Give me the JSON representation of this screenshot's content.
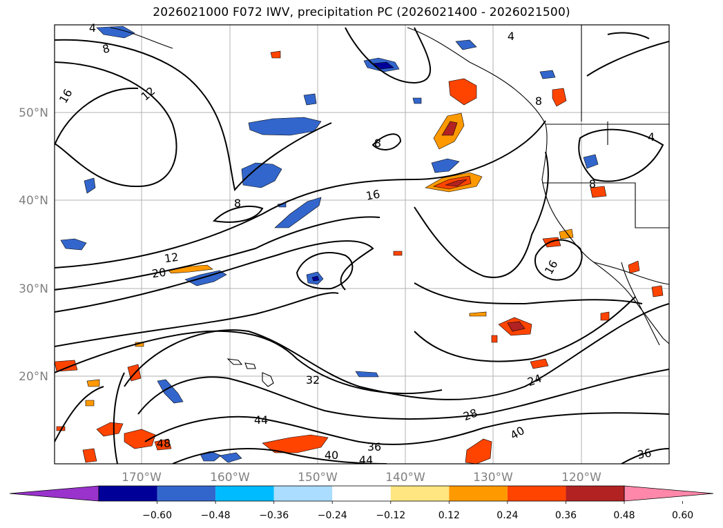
{
  "title": "2026021000 F072 IWV, precipitation PC (2026021400 - 2026021500)",
  "map": {
    "lat_ticks": [
      "50°N",
      "40°N",
      "30°N",
      "20°N"
    ],
    "lon_ticks": [
      "170°W",
      "160°W",
      "150°W",
      "140°W",
      "130°W",
      "120°W"
    ],
    "grid": true,
    "contour_labels": [
      "4",
      "8",
      "16",
      "12",
      "8",
      "16",
      "12",
      "20",
      "8",
      "16",
      "32",
      "44",
      "48",
      "40",
      "36",
      "44",
      "28",
      "24",
      "40",
      "36",
      "4",
      "8",
      "4",
      "8"
    ],
    "colors": {
      "line": "#000000",
      "grid": "#b0b0b0",
      "coast": "#000000"
    }
  },
  "colorbar": {
    "tick_labels": [
      "−0.60",
      "−0.48",
      "−0.36",
      "−0.24",
      "−0.12",
      "0.12",
      "0.24",
      "0.36",
      "0.48",
      "0.60"
    ],
    "colors": [
      "#9933cc",
      "#000099",
      "#3366cc",
      "#00bbff",
      "#aaddff",
      "#ffffff",
      "#ffe680",
      "#ff9900",
      "#ff4400",
      "#b22222",
      "#ff88aa"
    ]
  }
}
